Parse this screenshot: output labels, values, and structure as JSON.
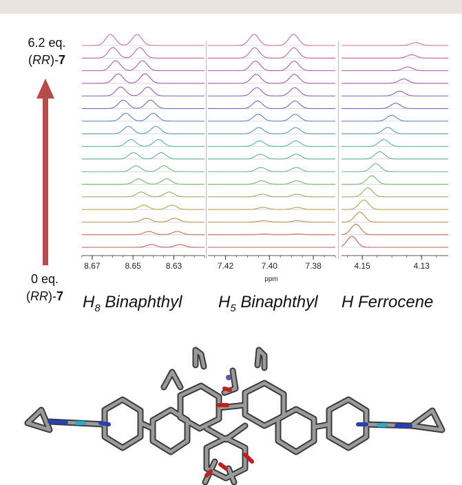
{
  "top_label": {
    "amount": "6.2 eq.",
    "prefix": "(",
    "stereo": "RR",
    "suffix": ")-",
    "compound": "7"
  },
  "bottom_label": {
    "amount": "0 eq.",
    "prefix": "(",
    "stereo": "RR",
    "suffix": ")-",
    "compound": "7"
  },
  "panel_titles": [
    {
      "main": "H",
      "sub": "8",
      "rest": " Binaphthyl"
    },
    {
      "main": "H",
      "sub": "5",
      "rest": " Binaphthyl"
    },
    {
      "main": "H Ferrocene",
      "sub": "",
      "rest": ""
    }
  ],
  "colors": {
    "arrow": "#b84a4a",
    "baseline": "#d0d0d0",
    "divider": "#bbbbbb",
    "top_bar": "#e9e4de",
    "stick": "#8c8c8c",
    "nitrogen": "#2a3fb0",
    "oxygen": "#c41e1e",
    "iron": "#2ea8c9"
  },
  "chart_data": {
    "type": "line",
    "xlabel": "ppm",
    "n_traces": 17,
    "trace_order": "bottom-to-top (0 eq. to 6.2 eq.)",
    "trace_color_gradient": [
      "#c8555a",
      "#b7a24a",
      "#6fb86f",
      "#53b2b2",
      "#6070c8",
      "#b24fb2",
      "#d46aa0"
    ],
    "panels": [
      {
        "name": "H8 Binaphthyl",
        "x_range": [
          8.675,
          8.615
        ],
        "ticks": [
          "8.67",
          "8.65",
          "8.63"
        ],
        "peaks_first_trace_ppm": [
          8.641,
          8.627
        ],
        "peaks_last_trace_ppm": [
          8.661,
          8.648
        ],
        "peak_height_first": 0.25,
        "peak_height_last": 1.0
      },
      {
        "name": "H5 Binaphthyl",
        "x_range": [
          7.428,
          7.37
        ],
        "ticks": [
          "7.42",
          "7.40",
          "7.38"
        ],
        "peaks_first_trace_ppm": [
          7.402,
          7.387
        ],
        "peaks_last_trace_ppm": [
          7.407,
          7.389
        ],
        "peak_height_first": 0.0,
        "peak_height_last": 1.0
      },
      {
        "name": "H Ferrocene",
        "x_range": [
          4.157,
          4.121
        ],
        "ticks": [
          "4.15",
          "4.13"
        ],
        "peaks_first_trace_ppm": [
          4.1535
        ],
        "peaks_last_trace_ppm": [
          4.132
        ],
        "peak_height_first": 1.0,
        "peak_height_last": 0.25
      }
    ]
  }
}
